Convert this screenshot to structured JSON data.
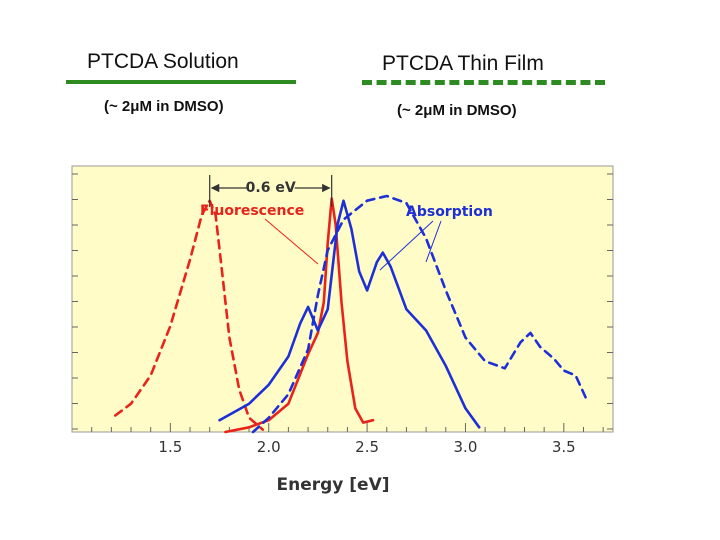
{
  "legend": {
    "solution": {
      "title": "PTCDA Solution",
      "subtitle": "(~ 2μM in DMSO)",
      "line_style": "solid"
    },
    "film": {
      "title": "PTCDA Thin Film",
      "subtitle": "(~ 2μM in DMSO)",
      "line_style": "dashed"
    },
    "line_color": "#2e8b22"
  },
  "colors": {
    "fluorescence": "#e8231b",
    "absorption": "#1f2fd6",
    "plot_bg": "#fffcc8"
  },
  "chart_data": {
    "type": "line",
    "xlabel": "Energy [eV]",
    "ylabel": "",
    "xlim": [
      1.0,
      3.75
    ],
    "ylim": [
      0,
      1.0
    ],
    "x_ticks": [
      "1.5",
      "2.0",
      "2.5",
      "3.0",
      "3.5"
    ],
    "grid": false,
    "annotations": {
      "gap_label": "0.6 eV",
      "gap_range": [
        1.7,
        2.32
      ],
      "fluorescence_label": "Fluorescence",
      "absorption_label": "Absorption"
    },
    "series": [
      {
        "name": "Fluorescence (solution)",
        "kind": "fluorescence",
        "style": "solid",
        "points": [
          [
            1.78,
            0.0
          ],
          [
            1.9,
            0.02
          ],
          [
            2.0,
            0.05
          ],
          [
            2.1,
            0.12
          ],
          [
            2.2,
            0.33
          ],
          [
            2.25,
            0.42
          ],
          [
            2.28,
            0.55
          ],
          [
            2.3,
            0.8
          ],
          [
            2.32,
            0.99
          ],
          [
            2.34,
            0.88
          ],
          [
            2.37,
            0.55
          ],
          [
            2.4,
            0.3
          ],
          [
            2.44,
            0.1
          ],
          [
            2.48,
            0.04
          ],
          [
            2.53,
            0.05
          ]
        ]
      },
      {
        "name": "Fluorescence (thin film)",
        "kind": "fluorescence",
        "style": "dashed",
        "points": [
          [
            1.22,
            0.07
          ],
          [
            1.3,
            0.12
          ],
          [
            1.4,
            0.24
          ],
          [
            1.5,
            0.45
          ],
          [
            1.6,
            0.73
          ],
          [
            1.66,
            0.92
          ],
          [
            1.7,
            0.98
          ],
          [
            1.73,
            0.92
          ],
          [
            1.76,
            0.7
          ],
          [
            1.8,
            0.4
          ],
          [
            1.85,
            0.18
          ],
          [
            1.9,
            0.06
          ],
          [
            1.97,
            0.01
          ]
        ]
      },
      {
        "name": "Absorption (solution)",
        "kind": "absorption",
        "style": "solid",
        "points": [
          [
            1.75,
            0.05
          ],
          [
            1.9,
            0.12
          ],
          [
            2.0,
            0.2
          ],
          [
            2.1,
            0.32
          ],
          [
            2.16,
            0.46
          ],
          [
            2.2,
            0.53
          ],
          [
            2.25,
            0.43
          ],
          [
            2.3,
            0.52
          ],
          [
            2.35,
            0.88
          ],
          [
            2.38,
            0.98
          ],
          [
            2.42,
            0.86
          ],
          [
            2.46,
            0.68
          ],
          [
            2.5,
            0.6
          ],
          [
            2.55,
            0.72
          ],
          [
            2.58,
            0.76
          ],
          [
            2.62,
            0.7
          ],
          [
            2.7,
            0.52
          ],
          [
            2.8,
            0.43
          ],
          [
            2.9,
            0.28
          ],
          [
            3.0,
            0.1
          ],
          [
            3.07,
            0.02
          ]
        ]
      },
      {
        "name": "Absorption (thin film)",
        "kind": "absorption",
        "style": "dashed",
        "points": [
          [
            1.92,
            0.0
          ],
          [
            2.0,
            0.06
          ],
          [
            2.1,
            0.16
          ],
          [
            2.2,
            0.35
          ],
          [
            2.25,
            0.58
          ],
          [
            2.3,
            0.77
          ],
          [
            2.38,
            0.9
          ],
          [
            2.5,
            0.98
          ],
          [
            2.6,
            1.0
          ],
          [
            2.7,
            0.97
          ],
          [
            2.8,
            0.82
          ],
          [
            2.9,
            0.6
          ],
          [
            3.0,
            0.4
          ],
          [
            3.1,
            0.3
          ],
          [
            3.2,
            0.27
          ],
          [
            3.28,
            0.38
          ],
          [
            3.33,
            0.42
          ],
          [
            3.38,
            0.36
          ],
          [
            3.45,
            0.31
          ],
          [
            3.5,
            0.26
          ],
          [
            3.56,
            0.24
          ],
          [
            3.62,
            0.13
          ]
        ]
      }
    ]
  }
}
